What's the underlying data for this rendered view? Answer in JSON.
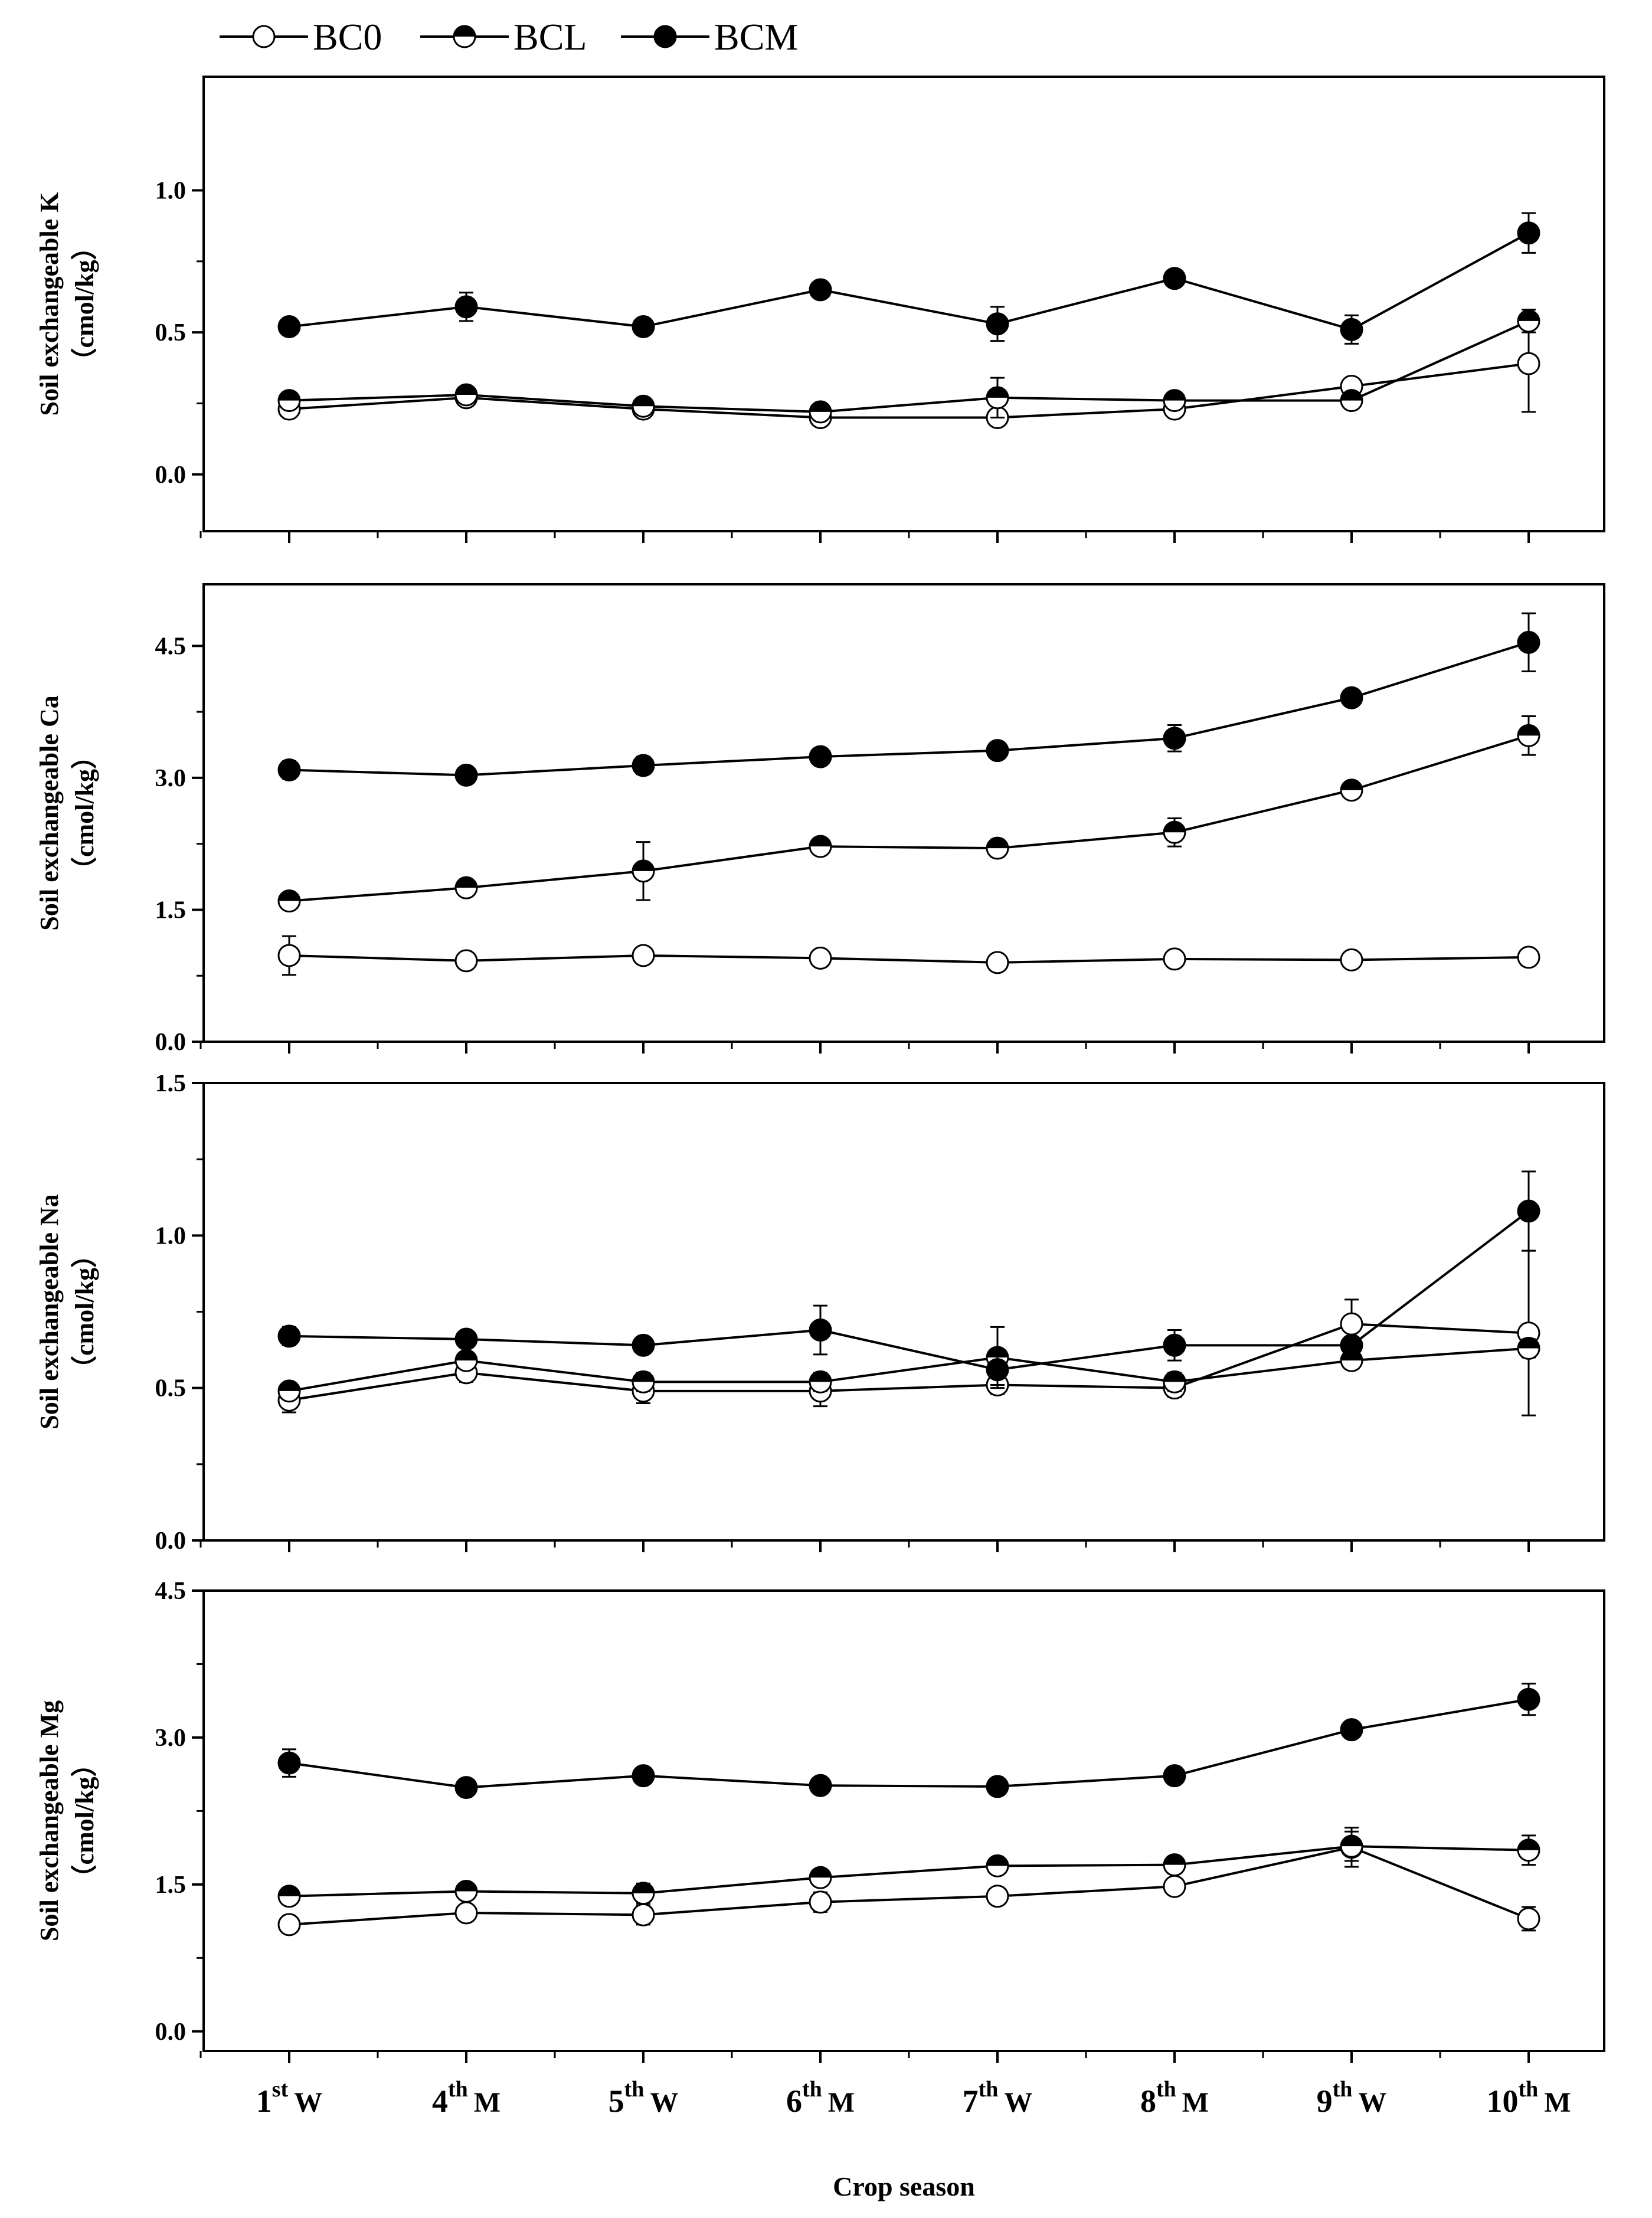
{
  "legend": [
    {
      "name": "BC0",
      "marker": "open-circle"
    },
    {
      "name": "BCL",
      "marker": "half-filled-circle"
    },
    {
      "name": "BCM",
      "marker": "filled-circle"
    }
  ],
  "xlabel": "Crop season",
  "chart_data": [
    {
      "type": "line",
      "ylabel": "Soil exchangeable K",
      "yunit": "（cmol/kg）",
      "ylim": [
        -0.2,
        1.4
      ],
      "yticks": [
        "0.0",
        "0.5",
        "1.0"
      ],
      "ytick_values": [
        0.0,
        0.5,
        1.0
      ],
      "categories": [
        "1st W",
        "4th M",
        "5th W",
        "6th M",
        "7th W",
        "8th M",
        "9th W",
        "10th M"
      ],
      "series": [
        {
          "name": "BC0",
          "values": [
            0.23,
            0.27,
            0.23,
            0.2,
            0.2,
            0.23,
            0.31,
            0.39
          ],
          "errors": [
            0.02,
            0.02,
            0.02,
            0.02,
            0.02,
            0.02,
            0.02,
            0.17
          ]
        },
        {
          "name": "BCL",
          "values": [
            0.26,
            0.28,
            0.24,
            0.22,
            0.27,
            0.26,
            0.26,
            0.54
          ],
          "errors": [
            0.02,
            0.02,
            0.02,
            0.02,
            0.07,
            0.02,
            0.02,
            0.04
          ]
        },
        {
          "name": "BCM",
          "values": [
            0.52,
            0.59,
            0.52,
            0.65,
            0.53,
            0.69,
            0.51,
            0.85
          ],
          "errors": [
            0.02,
            0.05,
            0.02,
            0.02,
            0.06,
            0.02,
            0.05,
            0.07
          ]
        }
      ]
    },
    {
      "type": "line",
      "ylabel": "Soil exchangeable Ca",
      "yunit": "（cmol/kg）",
      "ylim": [
        0.0,
        5.2
      ],
      "yticks": [
        "0.0",
        "1.5",
        "3.0",
        "4.5"
      ],
      "ytick_values": [
        0.0,
        1.5,
        3.0,
        4.5
      ],
      "categories": [
        "1st W",
        "4th M",
        "5th W",
        "6th M",
        "7th W",
        "8th M",
        "9th W",
        "10th M"
      ],
      "series": [
        {
          "name": "BC0",
          "values": [
            0.98,
            0.92,
            0.98,
            0.95,
            0.9,
            0.94,
            0.93,
            0.96
          ],
          "errors": [
            0.22,
            0.05,
            0.06,
            0.04,
            0.04,
            0.04,
            0.04,
            0.05
          ]
        },
        {
          "name": "BCL",
          "values": [
            1.6,
            1.75,
            1.94,
            2.22,
            2.2,
            2.38,
            2.86,
            3.48
          ],
          "errors": [
            0.05,
            0.05,
            0.33,
            0.05,
            0.1,
            0.16,
            0.05,
            0.22
          ]
        },
        {
          "name": "BCM",
          "values": [
            3.09,
            3.03,
            3.14,
            3.24,
            3.31,
            3.45,
            3.91,
            4.54
          ],
          "errors": [
            0.1,
            0.05,
            0.1,
            0.06,
            0.06,
            0.15,
            0.05,
            0.33
          ]
        }
      ]
    },
    {
      "type": "line",
      "ylabel": "Soil exchangeable Na",
      "yunit": "（cmol/kg）",
      "ylim": [
        0.0,
        1.5
      ],
      "yticks": [
        "0.0",
        "0.5",
        "1.0",
        "1.5"
      ],
      "ytick_values": [
        0.0,
        0.5,
        1.0,
        1.5
      ],
      "categories": [
        "1st W",
        "4th M",
        "5th W",
        "6th M",
        "7th W",
        "8th M",
        "9th W",
        "10th M"
      ],
      "series": [
        {
          "name": "BC0",
          "values": [
            0.46,
            0.55,
            0.49,
            0.49,
            0.51,
            0.5,
            0.71,
            0.68
          ],
          "errors": [
            0.04,
            0.03,
            0.04,
            0.05,
            0.03,
            0.03,
            0.08,
            0.27
          ]
        },
        {
          "name": "BCL",
          "values": [
            0.49,
            0.59,
            0.52,
            0.52,
            0.6,
            0.52,
            0.59,
            0.63
          ],
          "errors": [
            0.02,
            0.02,
            0.03,
            0.03,
            0.1,
            0.03,
            0.02,
            0.03
          ]
        },
        {
          "name": "BCM",
          "values": [
            0.67,
            0.66,
            0.64,
            0.69,
            0.56,
            0.64,
            0.64,
            1.08
          ],
          "errors": [
            0.03,
            0.02,
            0.02,
            0.08,
            0.05,
            0.05,
            0.02,
            0.13
          ]
        }
      ]
    },
    {
      "type": "line",
      "ylabel": "Soil exchangeable Mg",
      "yunit": "（cmol/kg）",
      "ylim": [
        -0.2,
        4.5
      ],
      "yticks": [
        "0.0",
        "1.5",
        "3.0",
        "4.5"
      ],
      "ytick_values": [
        0.0,
        1.5,
        3.0,
        4.5
      ],
      "categories": [
        "1st W",
        "4th M",
        "5th W",
        "6th M",
        "7th W",
        "8th M",
        "9th W",
        "10th M"
      ],
      "series": [
        {
          "name": "BC0",
          "values": [
            1.09,
            1.21,
            1.19,
            1.32,
            1.38,
            1.48,
            1.88,
            1.15
          ],
          "errors": [
            0.05,
            0.08,
            0.1,
            0.1,
            0.06,
            0.08,
            0.2,
            0.12
          ]
        },
        {
          "name": "BCL",
          "values": [
            1.38,
            1.43,
            1.41,
            1.57,
            1.69,
            1.7,
            1.89,
            1.85
          ],
          "errors": [
            0.05,
            0.05,
            0.1,
            0.06,
            0.06,
            0.05,
            0.15,
            0.15
          ]
        },
        {
          "name": "BCM",
          "values": [
            2.74,
            2.49,
            2.61,
            2.51,
            2.5,
            2.61,
            3.08,
            3.39
          ],
          "errors": [
            0.14,
            0.08,
            0.08,
            0.05,
            0.05,
            0.05,
            0.05,
            0.16
          ]
        }
      ]
    }
  ],
  "xtick_labels": [
    {
      "num": "1",
      "sup": "st",
      "suffix": "W"
    },
    {
      "num": "4",
      "sup": "th",
      "suffix": "M"
    },
    {
      "num": "5",
      "sup": "th",
      "suffix": "W"
    },
    {
      "num": "6",
      "sup": "th",
      "suffix": "M"
    },
    {
      "num": "7",
      "sup": "th",
      "suffix": "W"
    },
    {
      "num": "8",
      "sup": "th",
      "suffix": "M"
    },
    {
      "num": "9",
      "sup": "th",
      "suffix": "W"
    },
    {
      "num": "10",
      "sup": "th",
      "suffix": "M"
    }
  ]
}
